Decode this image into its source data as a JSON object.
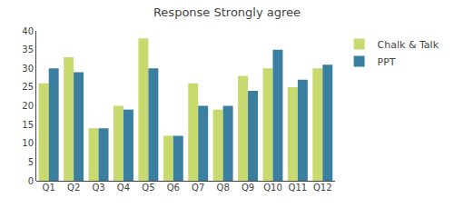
{
  "chart_data": {
    "type": "bar",
    "title": "Response Strongly agree",
    "categories": [
      "Q1",
      "Q2",
      "Q3",
      "Q4",
      "Q5",
      "Q6",
      "Q7",
      "Q8",
      "Q9",
      "Q10",
      "Q11",
      "Q12"
    ],
    "series": [
      {
        "name": "Chalk & Talk",
        "color": "#c8d96f",
        "values": [
          26,
          33,
          14,
          20,
          38,
          12,
          26,
          19,
          28,
          30,
          25,
          30
        ]
      },
      {
        "name": "PPT",
        "color": "#3a7fa0",
        "values": [
          30,
          29,
          14,
          19,
          30,
          12,
          20,
          20,
          24,
          35,
          27,
          31
        ]
      }
    ],
    "ylim": [
      0,
      40
    ],
    "yticks": [
      0,
      5,
      10,
      15,
      20,
      25,
      30,
      35,
      40
    ],
    "grid": false,
    "legend": "right"
  }
}
